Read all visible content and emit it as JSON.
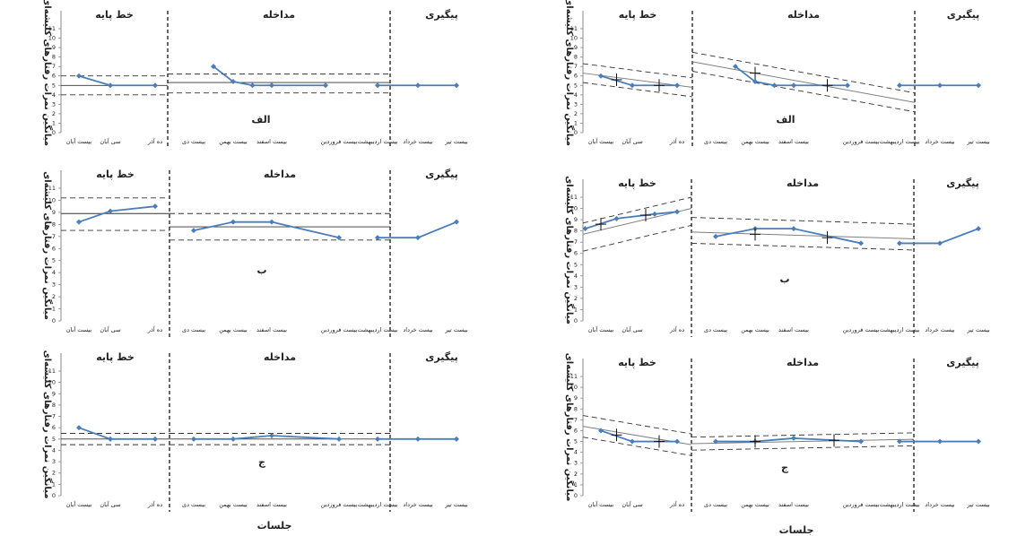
{
  "ylabel": "میانگین نمرات رفتارهای کلیشه‌ای",
  "xlabel": "جلسات",
  "phases": [
    "خط پایه",
    "مداخله",
    "پیگیری"
  ],
  "x_ticks": [
    "بیست آبان",
    "سی آبان",
    "ده آذر",
    "بیست دی",
    "بیست بهمن",
    "بیست اسفند",
    "بیست فروردین",
    "بیست اردیبهشت",
    "بیست خرداد",
    "بیست تیر"
  ],
  "y_ticks": [
    "0",
    "1",
    "2",
    "3",
    "4",
    "5",
    "6",
    "7",
    "8",
    "9",
    "10",
    "11"
  ],
  "colors": {
    "series": "#4a7ebb",
    "trend": "#808080",
    "band": "#333333",
    "divider": "#000000"
  },
  "chart_data": [
    {
      "type": "line",
      "panel_label": "الف",
      "variant": "stability",
      "title": "",
      "ylim": [
        0,
        11
      ],
      "grid": false,
      "baseline": {
        "x": [
          1,
          2,
          3
        ],
        "y": [
          6,
          5,
          5
        ]
      },
      "treatment": {
        "x": [
          4.5,
          5,
          5.5,
          6,
          6.8
        ],
        "y": [
          7,
          5.4,
          5,
          5,
          5
        ]
      },
      "followup": {
        "x": [
          8,
          9,
          10
        ],
        "y": [
          5,
          5,
          5
        ]
      },
      "stability_bands": [
        {
          "phase": "baseline",
          "mean": 5,
          "upper": 6,
          "lower": 4
        },
        {
          "phase": "treatment",
          "mean": 5.3,
          "upper": 6.2,
          "lower": 4.2
        }
      ]
    },
    {
      "type": "line",
      "panel_label": "الف",
      "variant": "trend",
      "title": "",
      "ylim": [
        0,
        11
      ],
      "grid": false,
      "baseline": {
        "x": [
          1,
          2,
          3
        ],
        "y": [
          6,
          5,
          5
        ]
      },
      "treatment": {
        "x": [
          4.5,
          5,
          5.5,
          6,
          6.8
        ],
        "y": [
          7,
          5.4,
          5,
          5,
          5
        ]
      },
      "followup": {
        "x": [
          8,
          9,
          10
        ],
        "y": [
          5,
          5,
          5
        ]
      },
      "trend_lines": [
        {
          "phase": "baseline",
          "x": [
            0,
            3.2
          ],
          "y": [
            6.3,
            4.8
          ],
          "upper_offset": 1,
          "lower_offset": 1
        },
        {
          "phase": "treatment",
          "x": [
            3.2,
            7.8
          ],
          "y": [
            7.5,
            3.2
          ],
          "upper_offset": 1,
          "lower_offset": 1
        }
      ],
      "crosses": [
        [
          1.5,
          5.6
        ],
        [
          2.6,
          5
        ],
        [
          5,
          6.3
        ],
        [
          6.5,
          5
        ]
      ]
    },
    {
      "type": "line",
      "panel_label": "ب",
      "variant": "stability",
      "title": "",
      "ylim": [
        0,
        11
      ],
      "grid": false,
      "baseline": {
        "x": [
          1,
          2,
          3
        ],
        "y": [
          8.2,
          9.1,
          9.5
        ]
      },
      "treatment": {
        "x": [
          4,
          5,
          6,
          7
        ],
        "y": [
          7.5,
          8.2,
          8.2,
          6.9
        ]
      },
      "followup": {
        "x": [
          8,
          9,
          10
        ],
        "y": [
          6.9,
          6.9,
          8.2
        ]
      },
      "stability_bands": [
        {
          "phase": "baseline",
          "mean": 8.9,
          "upper": 10.2,
          "lower": 7.5
        },
        {
          "phase": "treatment",
          "mean": 7.8,
          "upper": 8.9,
          "lower": 6.7
        }
      ]
    },
    {
      "type": "line",
      "panel_label": "ب",
      "variant": "trend",
      "title": "",
      "ylim": [
        0,
        11
      ],
      "grid": false,
      "baseline": {
        "x": [
          0.5,
          1.5,
          2.5,
          3
        ],
        "y": [
          8.2,
          9.1,
          9.5,
          9.7
        ]
      },
      "treatment": {
        "x": [
          4,
          5,
          6,
          7
        ],
        "y": [
          7.5,
          8.2,
          8.2,
          6.9
        ]
      },
      "followup": {
        "x": [
          8,
          9,
          10
        ],
        "y": [
          6.9,
          6.9,
          8.2
        ]
      },
      "trend_lines": [
        {
          "phase": "baseline",
          "x": [
            0,
            3.2
          ],
          "y": [
            7.7,
            10
          ],
          "upper_offset": 1,
          "lower_offset": 1.5
        },
        {
          "phase": "treatment",
          "x": [
            3.2,
            8
          ],
          "y": [
            7.9,
            7.3
          ],
          "upper_offset": 1.3,
          "lower_offset": 1
        }
      ],
      "crosses": [
        [
          1,
          8.6
        ],
        [
          2.3,
          9.4
        ],
        [
          5,
          7.7
        ],
        [
          6.5,
          7.4
        ]
      ]
    },
    {
      "type": "line",
      "panel_label": "ج",
      "variant": "stability",
      "title": "",
      "ylim": [
        0,
        11
      ],
      "grid": false,
      "baseline": {
        "x": [
          1,
          2,
          3
        ],
        "y": [
          6,
          5,
          5
        ]
      },
      "treatment": {
        "x": [
          4,
          5,
          6,
          7
        ],
        "y": [
          5,
          5,
          5.3,
          5
        ]
      },
      "followup": {
        "x": [
          8,
          9,
          10
        ],
        "y": [
          5,
          5,
          5
        ]
      },
      "stability_bands": [
        {
          "phase": "baseline",
          "mean": 5,
          "upper": 5.5,
          "lower": 4.5
        },
        {
          "phase": "treatment",
          "mean": 5,
          "upper": 5.5,
          "lower": 4.5
        }
      ]
    },
    {
      "type": "line",
      "panel_label": "ج",
      "variant": "trend",
      "title": "",
      "ylim": [
        0,
        11
      ],
      "grid": false,
      "baseline": {
        "x": [
          1,
          2,
          3
        ],
        "y": [
          6,
          5,
          5
        ]
      },
      "treatment": {
        "x": [
          4,
          5,
          6,
          7
        ],
        "y": [
          5,
          5,
          5.3,
          5
        ]
      },
      "followup": {
        "x": [
          8,
          9,
          10
        ],
        "y": [
          5,
          5,
          5
        ]
      },
      "trend_lines": [
        {
          "phase": "baseline",
          "x": [
            0,
            3.2
          ],
          "y": [
            6.4,
            4.7
          ],
          "upper_offset": 1,
          "lower_offset": 1
        },
        {
          "phase": "treatment",
          "x": [
            3.2,
            8
          ],
          "y": [
            4.8,
            5.2
          ],
          "upper_offset": 0.6,
          "lower_offset": 0.6
        }
      ],
      "crosses": [
        [
          1.5,
          5.6
        ],
        [
          2.6,
          5
        ],
        [
          5,
          5
        ],
        [
          6.6,
          5.1
        ]
      ]
    }
  ]
}
